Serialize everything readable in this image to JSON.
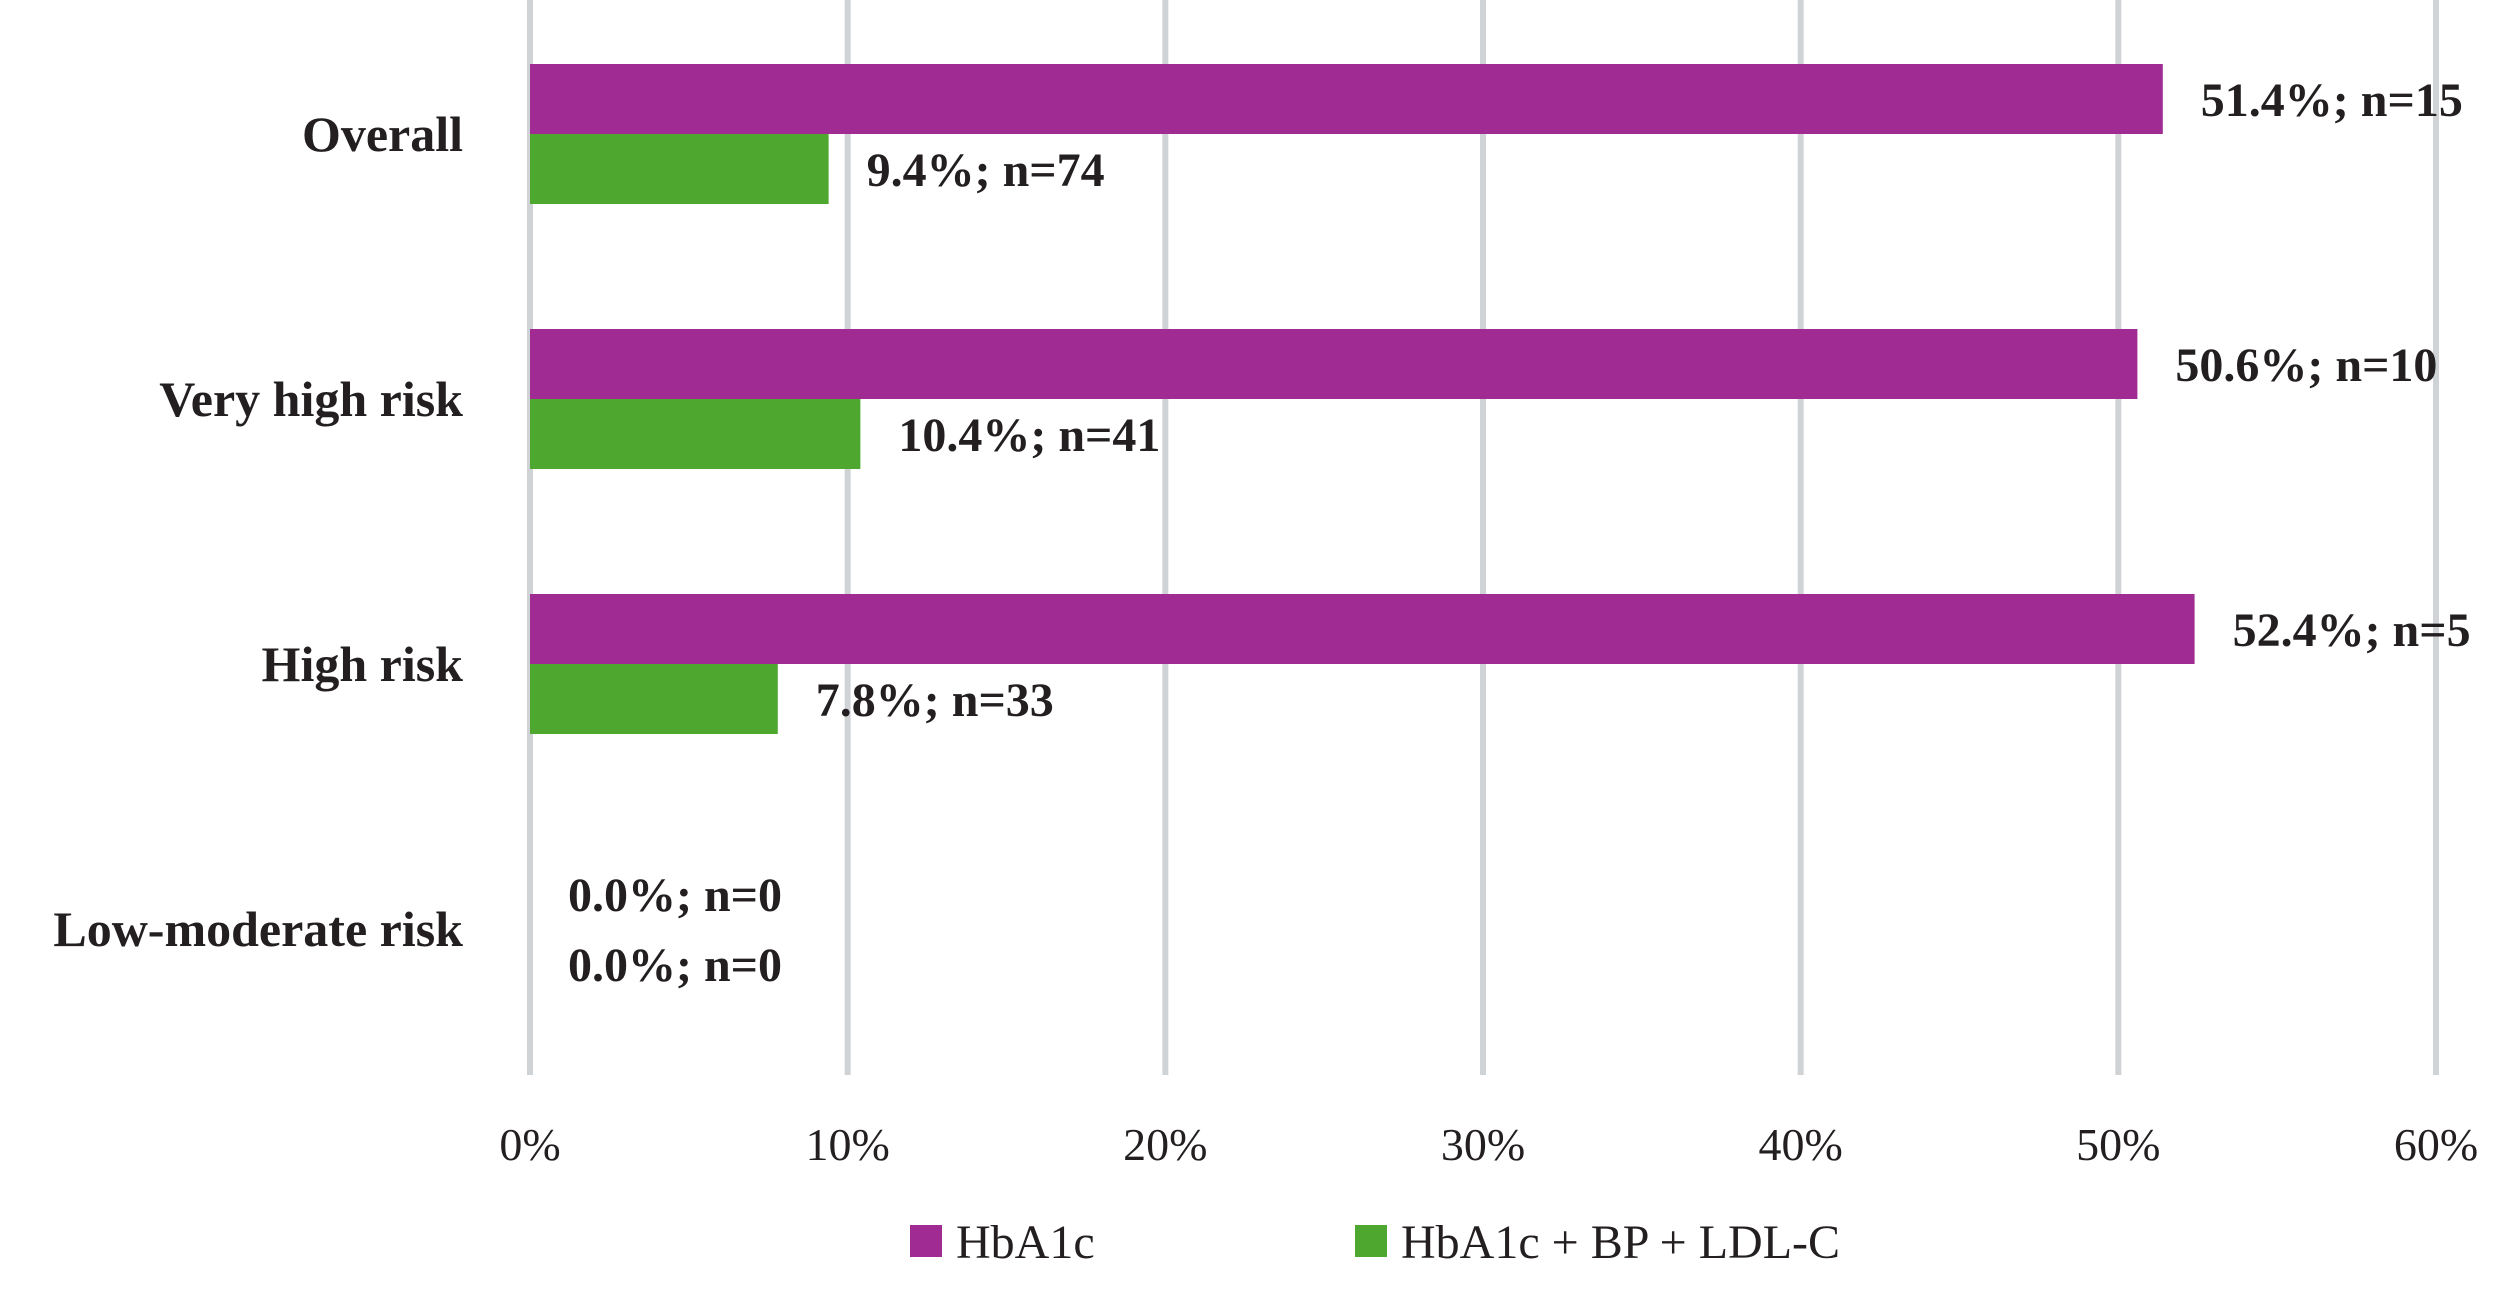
{
  "chart_data": {
    "type": "bar",
    "orientation": "horizontal",
    "categories": [
      "Overall",
      "Very high risk",
      "High risk",
      "Low-moderate risk"
    ],
    "series": [
      {
        "name": "HbA1c",
        "color": "#a02b93",
        "values": [
          51.4,
          50.6,
          52.4,
          0.0
        ],
        "labels": [
          "51.4%; n=15",
          "50.6%; n=10",
          "52.4%; n=5",
          "0.0%; n=0"
        ]
      },
      {
        "name": "HbA1c + BP + LDL-C",
        "color": "#4ea72e",
        "values": [
          9.4,
          10.4,
          7.8,
          0.0
        ],
        "labels": [
          "9.4%; n=74",
          "10.4%; n=41",
          "7.8%; n=33",
          "0.0%; n=0"
        ]
      }
    ],
    "xlim": [
      0,
      60
    ],
    "xticks": [
      0,
      10,
      20,
      30,
      40,
      50,
      60
    ],
    "xtick_labels": [
      "0%",
      "10%",
      "20%",
      "30%",
      "40%",
      "50%",
      "60%"
    ],
    "grid": true,
    "grid_color": "#d0d3d6",
    "legend_position": "bottom"
  }
}
